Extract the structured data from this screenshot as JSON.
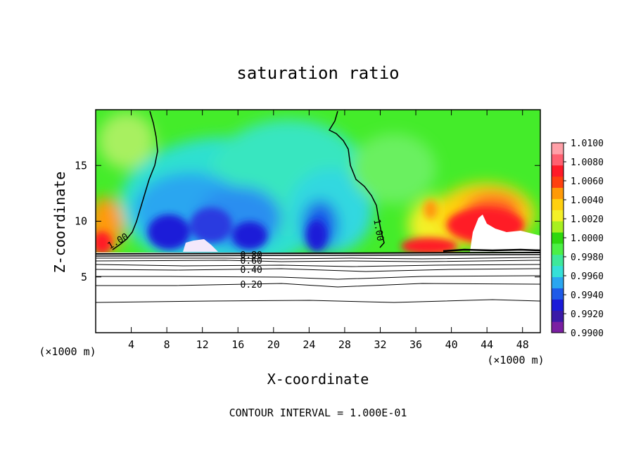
{
  "chart_data": {
    "type": "heatmap",
    "title": "saturation ratio",
    "xlabel": "X-coordinate",
    "ylabel": "Z-coordinate",
    "x_unit": "(×1000 m)",
    "x_unit_right": "(×1000 m)",
    "xlim": [
      0,
      50
    ],
    "ylim": [
      0,
      20
    ],
    "x_ticks": [
      4,
      8,
      12,
      16,
      20,
      24,
      28,
      32,
      36,
      40,
      44,
      48
    ],
    "y_ticks": [
      5,
      10,
      15
    ],
    "footer": "CONTOUR INTERVAL = 1.000E-01",
    "colorbar": {
      "min": 0.99,
      "max": 1.01,
      "labels": [
        "1.0100",
        "1.0080",
        "1.0060",
        "1.0040",
        "1.0020",
        "1.0000",
        "0.9980",
        "0.9960",
        "0.9940",
        "0.9920",
        "0.9900"
      ],
      "colors": [
        "#7a1fa2",
        "#3b1aa8",
        "#1a1ad8",
        "#1e5ae8",
        "#2aa6f0",
        "#35e0d8",
        "#3ee89a",
        "#4cf046",
        "#2ed80e",
        "#a8f020",
        "#f4f028",
        "#ffd010",
        "#ff9a08",
        "#ff4010",
        "#ff1a28",
        "#ff6070",
        "#ffa0a8"
      ]
    },
    "contour_labels": [
      {
        "text": "1.00",
        "x": 2.5,
        "z": 8.2
      },
      {
        "text": "1.00",
        "x": 31.8,
        "z": 9.2
      },
      {
        "text": "0.80",
        "x": 17.5,
        "z": 6.95
      },
      {
        "text": "0.60",
        "x": 17.5,
        "z": 6.45
      },
      {
        "text": "0.40",
        "x": 17.5,
        "z": 5.6
      },
      {
        "text": "0.20",
        "x": 17.5,
        "z": 4.3
      }
    ]
  }
}
